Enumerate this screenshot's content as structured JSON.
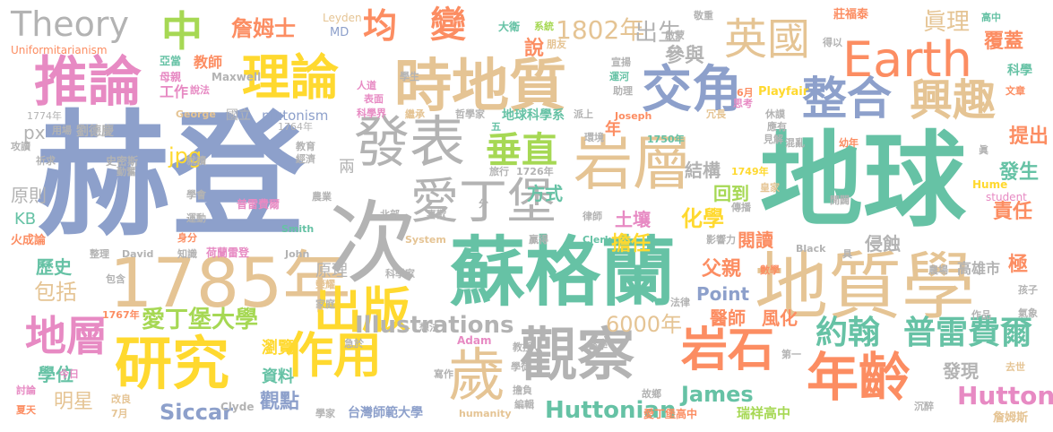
{
  "palette": {
    "blue": "#8da0cb",
    "green": "#66c2a5",
    "orange": "#fc8d62",
    "pink": "#e78ac3",
    "lime": "#a6d854",
    "yellow": "#ffd92f",
    "tan": "#e5c494",
    "gray": "#b3b3b3"
  },
  "words": [
    {
      "text": "赫登",
      "color": "blue"
    },
    {
      "text": "地球",
      "color": "green"
    },
    {
      "text": "蘇格蘭",
      "color": "green"
    },
    {
      "text": "1785年",
      "color": "tan"
    },
    {
      "text": "次",
      "color": "gray"
    },
    {
      "text": "地質學",
      "color": "tan"
    },
    {
      "text": "時地質",
      "color": "tan"
    },
    {
      "text": "發表",
      "color": "gray"
    },
    {
      "text": "岩層",
      "color": "tan"
    },
    {
      "text": "愛丁堡",
      "color": "gray"
    },
    {
      "text": "觀察",
      "color": "gray"
    },
    {
      "text": "研究",
      "color": "yellow"
    },
    {
      "text": "作用",
      "color": "yellow"
    },
    {
      "text": "出版",
      "color": "yellow"
    },
    {
      "text": "歲",
      "color": "tan"
    },
    {
      "text": "年齡",
      "color": "orange"
    },
    {
      "text": "岩石",
      "color": "orange"
    },
    {
      "text": "整合",
      "color": "blue"
    },
    {
      "text": "交角",
      "color": "blue"
    },
    {
      "text": "興趣",
      "color": "tan"
    },
    {
      "text": "Earth",
      "color": "orange"
    },
    {
      "text": "英國",
      "color": "tan"
    },
    {
      "text": "理論",
      "color": "yellow"
    },
    {
      "text": "推論",
      "color": "pink"
    },
    {
      "text": "Theory",
      "color": "gray"
    },
    {
      "text": "中",
      "color": "lime"
    },
    {
      "text": "均",
      "color": "orange"
    },
    {
      "text": "變",
      "color": "orange"
    },
    {
      "text": "地層",
      "color": "pink"
    },
    {
      "text": "垂直",
      "color": "lime"
    },
    {
      "text": "約翰",
      "color": "green"
    },
    {
      "text": "普雷費爾",
      "color": "green"
    },
    {
      "text": "愛丁堡大學",
      "color": "lime"
    },
    {
      "text": "Illustrations",
      "color": "gray"
    },
    {
      "text": "6000年",
      "color": "tan"
    },
    {
      "text": "Hutton",
      "color": "pink"
    },
    {
      "text": "Huttonian",
      "color": "green"
    },
    {
      "text": "Siccar",
      "color": "blue"
    },
    {
      "text": "James",
      "color": "green"
    },
    {
      "text": "1802年",
      "color": "tan"
    },
    {
      "text": "出生",
      "color": "gray"
    },
    {
      "text": "參與",
      "color": "gray"
    },
    {
      "text": "眞理",
      "color": "tan"
    },
    {
      "text": "覆蓋",
      "color": "orange"
    },
    {
      "text": "科學",
      "color": "green"
    },
    {
      "text": "詹姆士",
      "color": "orange"
    },
    {
      "text": "說",
      "color": "orange"
    },
    {
      "text": "結構",
      "color": "gray"
    },
    {
      "text": "提出",
      "color": "orange"
    },
    {
      "text": "發生",
      "color": "green"
    },
    {
      "text": "責任",
      "color": "orange"
    },
    {
      "text": "回到",
      "color": "lime"
    },
    {
      "text": "方式",
      "color": "green"
    },
    {
      "text": "化學",
      "color": "yellow"
    },
    {
      "text": "土壤",
      "color": "pink"
    },
    {
      "text": "閱讀",
      "color": "orange"
    },
    {
      "text": "侵蝕",
      "color": "gray"
    },
    {
      "text": "擔任",
      "color": "yellow"
    },
    {
      "text": "父親",
      "color": "orange"
    },
    {
      "text": "醫師",
      "color": "orange"
    },
    {
      "text": "風化",
      "color": "orange"
    },
    {
      "text": "極",
      "color": "orange"
    },
    {
      "text": "Point",
      "color": "blue"
    },
    {
      "text": "原理",
      "color": "gray"
    },
    {
      "text": "包括",
      "color": "tan"
    },
    {
      "text": "學位",
      "color": "green"
    },
    {
      "text": "明星",
      "color": "tan"
    },
    {
      "text": "歷史",
      "color": "green"
    },
    {
      "text": "原則",
      "color": "gray"
    },
    {
      "text": "KB",
      "color": "green"
    },
    {
      "text": "瀏覽",
      "color": "yellow"
    },
    {
      "text": "資料",
      "color": "green"
    },
    {
      "text": "觀點",
      "color": "blue"
    },
    {
      "text": "發現",
      "color": "gray"
    },
    {
      "text": "高雄市",
      "color": "gray"
    },
    {
      "text": "年",
      "color": "orange"
    },
    {
      "text": "jpg",
      "color": "yellow"
    },
    {
      "text": "px",
      "color": "gray"
    },
    {
      "text": "教師",
      "color": "orange"
    },
    {
      "text": "工作",
      "color": "pink"
    },
    {
      "text": "劉德慶",
      "color": "gray"
    },
    {
      "text": "國立",
      "color": "gray"
    },
    {
      "text": "plutonism",
      "color": "blue"
    },
    {
      "text": "地球科學系",
      "color": "green"
    },
    {
      "text": "瑞祥高中",
      "color": "lime"
    },
    {
      "text": "台灣師範大學",
      "color": "blue"
    },
    {
      "text": "詹姆斯",
      "color": "tan"
    },
    {
      "text": "Uniformitarianism",
      "color": "orange"
    },
    {
      "text": "亞當",
      "color": "green"
    },
    {
      "text": "母親",
      "color": "pink"
    },
    {
      "text": "Maxwell",
      "color": "gray"
    },
    {
      "text": "說法",
      "color": "pink"
    },
    {
      "text": "Leyden",
      "color": "tan"
    },
    {
      "text": "MD",
      "color": "blue"
    },
    {
      "text": "人道",
      "color": "pink"
    },
    {
      "text": "表面",
      "color": "pink"
    },
    {
      "text": "科學界",
      "color": "pink"
    },
    {
      "text": "繼承",
      "color": "tan"
    },
    {
      "text": "哲學家",
      "color": "gray"
    },
    {
      "text": "派上",
      "color": "gray"
    },
    {
      "text": "學生",
      "color": "gray"
    },
    {
      "text": "大衛",
      "color": "green"
    },
    {
      "text": "系統",
      "color": "lime"
    },
    {
      "text": "朋友",
      "color": "tan"
    },
    {
      "text": "宣揚",
      "color": "gray"
    },
    {
      "text": "助理",
      "color": "gray"
    },
    {
      "text": "運河",
      "color": "green"
    },
    {
      "text": "啟蒙",
      "color": "gray"
    },
    {
      "text": "敬重",
      "color": "gray"
    },
    {
      "text": "莊福泰",
      "color": "orange"
    },
    {
      "text": "高中",
      "color": "green"
    },
    {
      "text": "得以",
      "color": "gray"
    },
    {
      "text": "文章",
      "color": "orange"
    },
    {
      "text": "6月",
      "color": "orange"
    },
    {
      "text": "Playfair",
      "color": "yellow"
    },
    {
      "text": "思考",
      "color": "pink"
    },
    {
      "text": "休謨",
      "color": "gray"
    },
    {
      "text": "冗長",
      "color": "tan"
    },
    {
      "text": "應有",
      "color": "gray"
    },
    {
      "text": "見解",
      "color": "gray"
    },
    {
      "text": "Joseph",
      "color": "orange"
    },
    {
      "text": "環境",
      "color": "gray"
    },
    {
      "text": "五",
      "color": "green"
    },
    {
      "text": "1774年",
      "color": "gray"
    },
    {
      "text": "用場",
      "color": "gray"
    },
    {
      "text": "George",
      "color": "tan"
    },
    {
      "text": "1764年",
      "color": "gray"
    },
    {
      "text": "教育",
      "color": "gray"
    },
    {
      "text": "經濟",
      "color": "gray"
    },
    {
      "text": "1750年",
      "color": "green"
    },
    {
      "text": "混亂",
      "color": "gray"
    },
    {
      "text": "幼年",
      "color": "orange"
    },
    {
      "text": "1749年",
      "color": "yellow"
    },
    {
      "text": "皇家",
      "color": "tan"
    },
    {
      "text": "Hume",
      "color": "yellow"
    },
    {
      "text": "student",
      "color": "pink"
    },
    {
      "text": "傳播",
      "color": "gray"
    },
    {
      "text": "開闢",
      "color": "gray"
    },
    {
      "text": "旅行",
      "color": "gray"
    },
    {
      "text": "1726年",
      "color": "gray"
    },
    {
      "text": "攻讀",
      "color": "gray"
    },
    {
      "text": "祈求",
      "color": "gray"
    },
    {
      "text": "史密斯",
      "color": "gray"
    },
    {
      "text": "就讀",
      "color": "gray"
    },
    {
      "text": "學會",
      "color": "gray"
    },
    {
      "text": "普雷費爾",
      "color": "pink"
    },
    {
      "text": "農業",
      "color": "gray"
    },
    {
      "text": "喜歡",
      "color": "gray"
    },
    {
      "text": "分",
      "color": "gray"
    },
    {
      "text": "律師",
      "color": "gray"
    },
    {
      "text": "運動",
      "color": "gray"
    },
    {
      "text": "北部",
      "color": "gray"
    },
    {
      "text": "火成論",
      "color": "orange"
    },
    {
      "text": "身分",
      "color": "orange"
    },
    {
      "text": "Smith",
      "color": "green"
    },
    {
      "text": "System",
      "color": "tan"
    },
    {
      "text": "Clerk",
      "color": "green"
    },
    {
      "text": "贏得",
      "color": "gray"
    },
    {
      "text": "影響力",
      "color": "gray"
    },
    {
      "text": "Black",
      "color": "gray"
    },
    {
      "text": "具",
      "color": "gray"
    },
    {
      "text": "農場",
      "color": "gray"
    },
    {
      "text": "整理",
      "color": "gray"
    },
    {
      "text": "David",
      "color": "gray"
    },
    {
      "text": "知識",
      "color": "gray"
    },
    {
      "text": "荷蘭雷登",
      "color": "pink"
    },
    {
      "text": "John",
      "color": "gray"
    },
    {
      "text": "數學",
      "color": "orange"
    },
    {
      "text": "孩子",
      "color": "gray"
    },
    {
      "text": "包含",
      "color": "gray"
    },
    {
      "text": "榮耀",
      "color": "tan"
    },
    {
      "text": "科學家",
      "color": "gray"
    },
    {
      "text": "家庭",
      "color": "gray"
    },
    {
      "text": "法律",
      "color": "gray"
    },
    {
      "text": "作品",
      "color": "gray"
    },
    {
      "text": "氣象",
      "color": "gray"
    },
    {
      "text": "1767年",
      "color": "orange"
    },
    {
      "text": "想法",
      "color": "gray"
    },
    {
      "text": "醫學",
      "color": "gray"
    },
    {
      "text": "急於",
      "color": "gray"
    },
    {
      "text": "Adam",
      "color": "pink"
    },
    {
      "text": "教授",
      "color": "gray"
    },
    {
      "text": "第一",
      "color": "gray"
    },
    {
      "text": "寫作",
      "color": "gray"
    },
    {
      "text": "學徒",
      "color": "gray"
    },
    {
      "text": "擔負",
      "color": "gray"
    },
    {
      "text": "去世",
      "color": "tan"
    },
    {
      "text": "今日",
      "color": "pink"
    },
    {
      "text": "討論",
      "color": "pink"
    },
    {
      "text": "夏天",
      "color": "orange"
    },
    {
      "text": "改良",
      "color": "tan"
    },
    {
      "text": "7月",
      "color": "tan"
    },
    {
      "text": "Clyde",
      "color": "gray"
    },
    {
      "text": "學家",
      "color": "gray"
    },
    {
      "text": "humanity",
      "color": "tan"
    },
    {
      "text": "編輯",
      "color": "gray"
    },
    {
      "text": "故鄉",
      "color": "gray"
    },
    {
      "text": "愛丁堡高中",
      "color": "orange"
    },
    {
      "text": "沉醉",
      "color": "gray"
    },
    {
      "text": "勤奮",
      "color": "gray"
    },
    {
      "text": "兩",
      "color": "gray"
    },
    {
      "text": "眞",
      "color": "gray"
    }
  ]
}
